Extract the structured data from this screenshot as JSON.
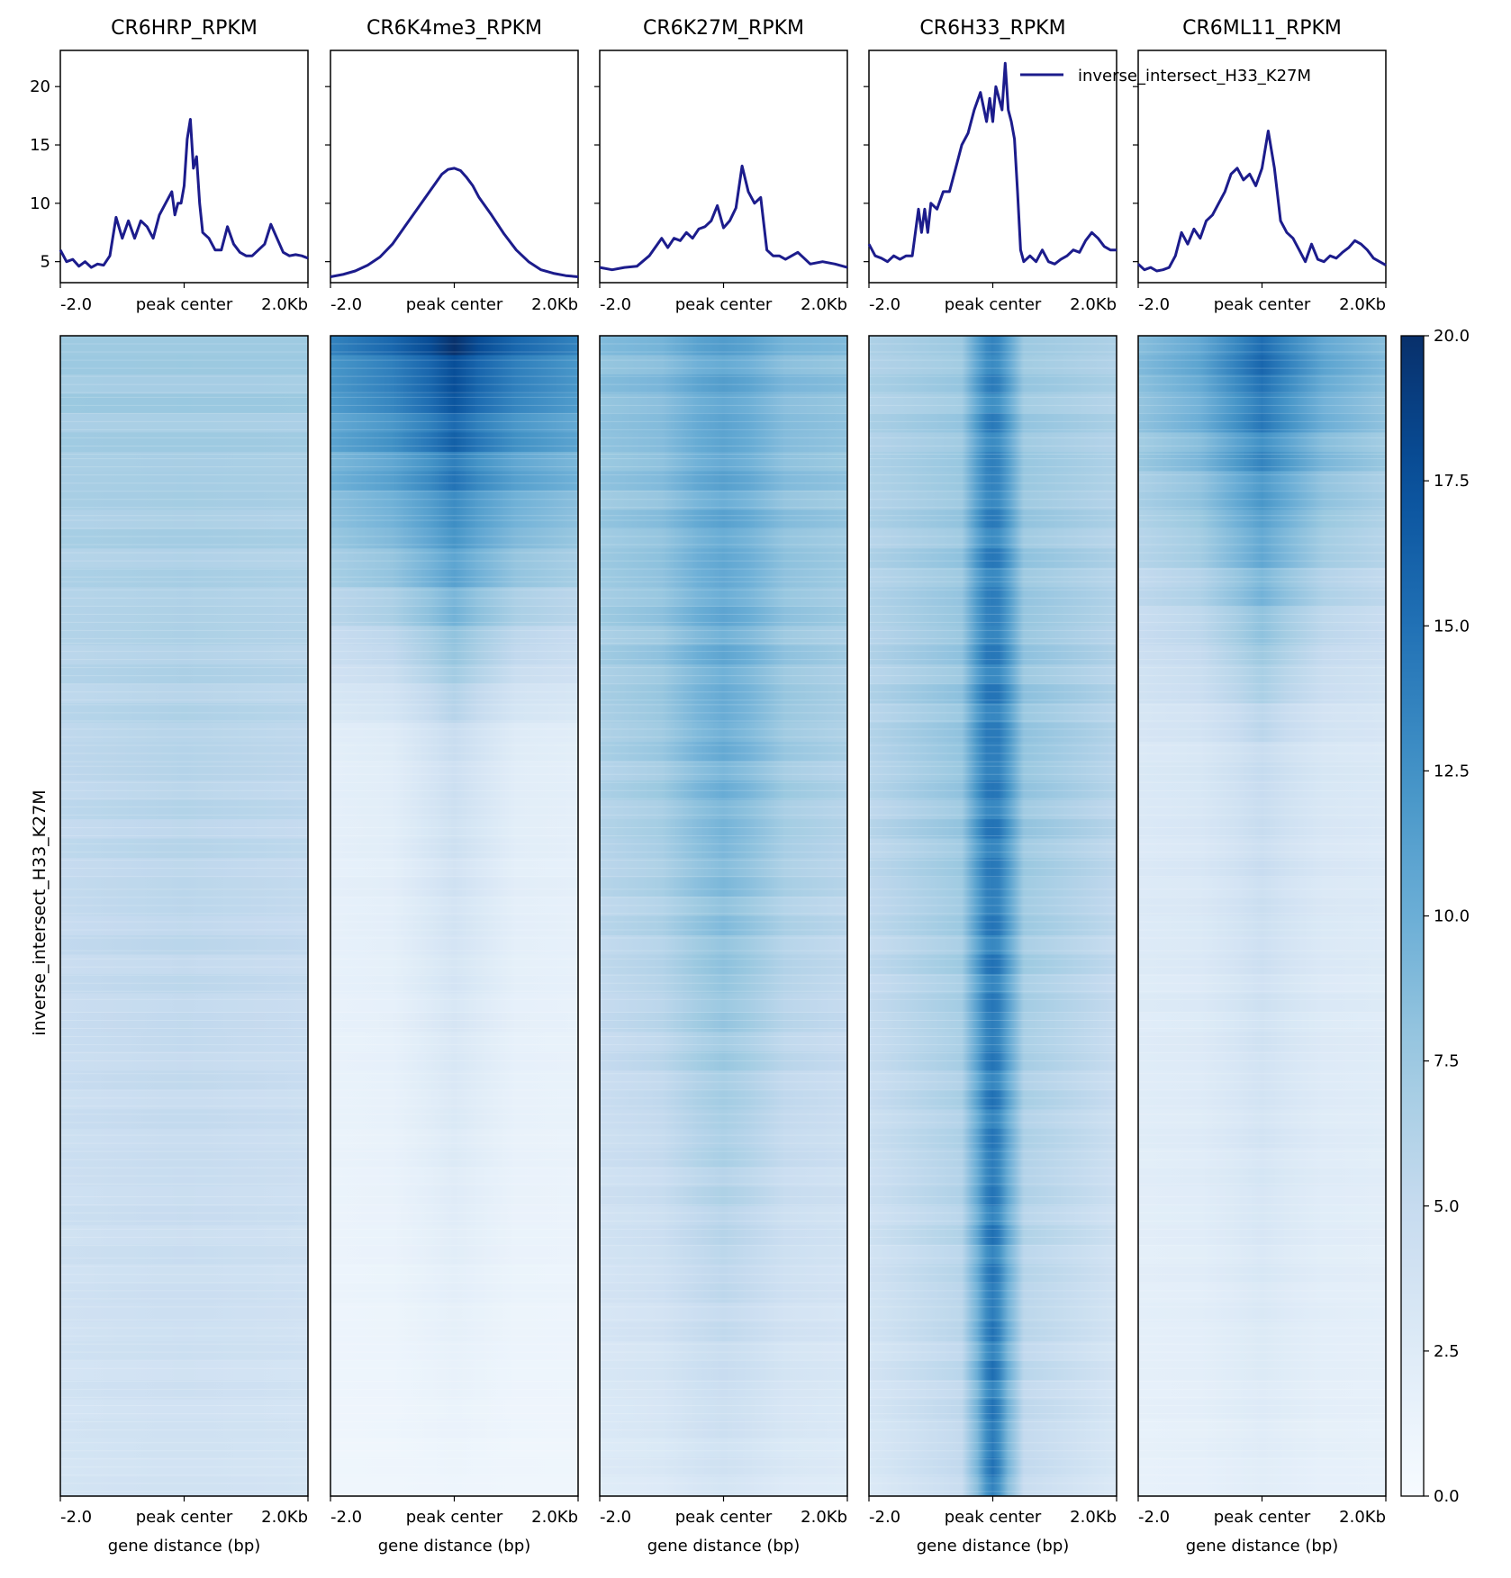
{
  "chart_data": {
    "type": "heatmap",
    "row_label": "inverse_intersect_H33_K27M",
    "x_ticks": [
      "-2.0",
      "peak center",
      "2.0Kb"
    ],
    "xlabel": "gene distance (bp)",
    "profile_ylim": [
      3.2,
      23.1
    ],
    "profile_yticks": [
      5,
      10,
      15,
      20
    ],
    "colorbar": {
      "min": 0,
      "max": 20,
      "ticks": [
        "0.0",
        "2.5",
        "5.0",
        "7.5",
        "10.0",
        "12.5",
        "15.0",
        "17.5",
        "20.0"
      ],
      "colormap": "Blues"
    },
    "legend": {
      "label": "inverse_intersect_H33_K27M",
      "color": "#1c1c8c",
      "placement": "top-right of profile 4"
    },
    "samples": [
      {
        "title": "CR6HRP_RPKM",
        "profile_x": [
          -2000,
          -1900,
          -1800,
          -1700,
          -1600,
          -1500,
          -1400,
          -1300,
          -1200,
          -1100,
          -1000,
          -900,
          -800,
          -700,
          -600,
          -500,
          -400,
          -300,
          -200,
          -150,
          -100,
          -50,
          0,
          50,
          100,
          150,
          200,
          250,
          300,
          400,
          500,
          600,
          700,
          800,
          900,
          1000,
          1100,
          1200,
          1300,
          1400,
          1500,
          1600,
          1700,
          1800,
          1900,
          2000
        ],
        "profile_y": [
          6,
          5,
          5.2,
          4.6,
          5,
          4.5,
          4.8,
          4.7,
          5.5,
          8.8,
          7,
          8.5,
          7,
          8.5,
          8,
          7,
          9,
          10,
          11,
          9,
          10,
          10,
          11.5,
          15.5,
          17.2,
          13,
          14,
          10,
          7.5,
          7,
          6,
          6,
          8,
          6.5,
          5.8,
          5.5,
          5.5,
          6,
          6.5,
          8.2,
          7,
          5.8,
          5.5,
          5.6,
          5.5,
          5.3
        ],
        "heat_profile": [
          {
            "dx": -2000,
            "top": 7.5,
            "mid": 5.5,
            "bot": 3.5
          },
          {
            "dx": -1000,
            "top": 7.5,
            "mid": 5.8,
            "bot": 3.7
          },
          {
            "dx": -300,
            "top": 7.5,
            "mid": 6.0,
            "bot": 3.8
          },
          {
            "dx": 0,
            "top": 7.5,
            "mid": 6.1,
            "bot": 3.8
          },
          {
            "dx": 300,
            "top": 7.5,
            "mid": 6.0,
            "bot": 3.8
          },
          {
            "dx": 1000,
            "top": 7.5,
            "mid": 5.8,
            "bot": 3.7
          },
          {
            "dx": 2000,
            "top": 7.5,
            "mid": 5.5,
            "bot": 3.5
          }
        ]
      },
      {
        "title": "CR6K4me3_RPKM",
        "profile_x": [
          -2000,
          -1800,
          -1600,
          -1400,
          -1200,
          -1000,
          -800,
          -600,
          -400,
          -200,
          -100,
          0,
          100,
          200,
          300,
          400,
          600,
          800,
          1000,
          1200,
          1400,
          1600,
          1800,
          2000
        ],
        "profile_y": [
          3.7,
          3.9,
          4.2,
          4.7,
          5.4,
          6.5,
          8,
          9.5,
          11,
          12.5,
          12.9,
          13,
          12.8,
          12.2,
          11.5,
          10.5,
          9,
          7.4,
          6,
          5,
          4.3,
          4,
          3.8,
          3.7
        ],
        "heat_profile": [
          {
            "dx": -2000,
            "top": 13,
            "mid": 2.0,
            "bot": 0.8
          },
          {
            "dx": -1000,
            "top": 15,
            "mid": 2.3,
            "bot": 0.8
          },
          {
            "dx": -400,
            "top": 17,
            "mid": 3.6,
            "bot": 0.9
          },
          {
            "dx": 0,
            "top": 19,
            "mid": 4.5,
            "bot": 1.0
          },
          {
            "dx": 400,
            "top": 17,
            "mid": 3.6,
            "bot": 0.9
          },
          {
            "dx": 1000,
            "top": 15,
            "mid": 2.3,
            "bot": 0.8
          },
          {
            "dx": 2000,
            "top": 13,
            "mid": 2.0,
            "bot": 0.8
          }
        ]
      },
      {
        "title": "CR6K27M_RPKM",
        "profile_x": [
          -2000,
          -1800,
          -1600,
          -1400,
          -1200,
          -1000,
          -900,
          -800,
          -700,
          -600,
          -500,
          -400,
          -300,
          -200,
          -100,
          0,
          100,
          200,
          300,
          400,
          500,
          600,
          700,
          800,
          900,
          1000,
          1200,
          1400,
          1600,
          1800,
          2000
        ],
        "profile_y": [
          4.5,
          4.3,
          4.5,
          4.6,
          5.5,
          7,
          6.2,
          7,
          6.8,
          7.5,
          7,
          7.8,
          8,
          8.5,
          9.8,
          7.9,
          8.5,
          9.6,
          13.2,
          11,
          10,
          10.5,
          6,
          5.5,
          5.5,
          5.2,
          5.8,
          4.8,
          5,
          4.8,
          4.5
        ],
        "heat_profile": [
          {
            "dx": -2000,
            "top": 8.5,
            "mid": 6.5,
            "bot": 2.5
          },
          {
            "dx": -1000,
            "top": 9.0,
            "mid": 7.5,
            "bot": 2.8
          },
          {
            "dx": -400,
            "top": 10.5,
            "mid": 9.2,
            "bot": 3.4
          },
          {
            "dx": 0,
            "top": 11.0,
            "mid": 10.0,
            "bot": 3.7
          },
          {
            "dx": 400,
            "top": 10.5,
            "mid": 9.2,
            "bot": 3.4
          },
          {
            "dx": 1000,
            "top": 9.0,
            "mid": 7.5,
            "bot": 2.8
          },
          {
            "dx": 2000,
            "top": 8.5,
            "mid": 6.5,
            "bot": 2.5
          }
        ]
      },
      {
        "title": "CR6H33_RPKM",
        "profile_x": [
          -2000,
          -1900,
          -1800,
          -1700,
          -1600,
          -1500,
          -1400,
          -1300,
          -1200,
          -1150,
          -1100,
          -1050,
          -1000,
          -900,
          -800,
          -700,
          -600,
          -500,
          -400,
          -300,
          -200,
          -100,
          -50,
          0,
          50,
          100,
          150,
          200,
          250,
          300,
          350,
          400,
          450,
          500,
          600,
          700,
          800,
          900,
          1000,
          1100,
          1200,
          1300,
          1400,
          1500,
          1600,
          1700,
          1800,
          1900,
          2000
        ],
        "profile_y": [
          6.5,
          5.5,
          5.3,
          5,
          5.5,
          5.2,
          5.5,
          5.5,
          9.5,
          7.5,
          9.5,
          7.5,
          10,
          9.5,
          11,
          11,
          13,
          15,
          16,
          18,
          19.5,
          17,
          19,
          17,
          20,
          19,
          18,
          22,
          18,
          17,
          15.5,
          11,
          6,
          5,
          5.5,
          5,
          6,
          5,
          4.8,
          5.2,
          5.5,
          6,
          5.8,
          6.8,
          7.5,
          7,
          6.3,
          6,
          6
        ],
        "heat_profile": [
          {
            "dx": -2000,
            "top": 6.5,
            "mid": 6.0,
            "bot": 3.0
          },
          {
            "dx": -500,
            "top": 7.5,
            "mid": 8.0,
            "bot": 5.0
          },
          {
            "dx": -250,
            "top": 11.0,
            "mid": 12.0,
            "bot": 9.0
          },
          {
            "dx": -100,
            "top": 13.0,
            "mid": 14.0,
            "bot": 13.0
          },
          {
            "dx": 0,
            "top": 13.5,
            "mid": 14.0,
            "bot": 14.5
          },
          {
            "dx": 100,
            "top": 13.0,
            "mid": 14.0,
            "bot": 13.0
          },
          {
            "dx": 250,
            "top": 11.0,
            "mid": 12.0,
            "bot": 9.0
          },
          {
            "dx": 500,
            "top": 7.5,
            "mid": 8.0,
            "bot": 5.0
          },
          {
            "dx": 2000,
            "top": 6.5,
            "mid": 6.0,
            "bot": 3.0
          }
        ]
      },
      {
        "title": "CR6ML11_RPKM",
        "profile_x": [
          -2000,
          -1900,
          -1800,
          -1700,
          -1600,
          -1500,
          -1400,
          -1300,
          -1200,
          -1100,
          -1000,
          -900,
          -800,
          -700,
          -600,
          -500,
          -400,
          -300,
          -200,
          -100,
          0,
          100,
          200,
          300,
          400,
          500,
          600,
          700,
          800,
          900,
          1000,
          1100,
          1200,
          1300,
          1400,
          1500,
          1600,
          1700,
          1800,
          1900,
          2000
        ],
        "profile_y": [
          4.8,
          4.3,
          4.5,
          4.2,
          4.3,
          4.5,
          5.5,
          7.5,
          6.5,
          7.8,
          7,
          8.5,
          9,
          10,
          11,
          12.5,
          13,
          12,
          12.5,
          11.5,
          13,
          16.2,
          13,
          8.5,
          7.5,
          7,
          6,
          5,
          6.5,
          5.2,
          5,
          5.5,
          5.3,
          5.8,
          6.2,
          6.8,
          6.5,
          6,
          5.3,
          5,
          4.7
        ],
        "heat_profile": [
          {
            "dx": -2000,
            "top": 9.0,
            "mid": 3.0,
            "bot": 1.6
          },
          {
            "dx": -1000,
            "top": 11.0,
            "mid": 3.3,
            "bot": 1.7
          },
          {
            "dx": -400,
            "top": 14.0,
            "mid": 4.2,
            "bot": 2.0
          },
          {
            "dx": 0,
            "top": 16.0,
            "mid": 5.0,
            "bot": 2.2
          },
          {
            "dx": 400,
            "top": 14.0,
            "mid": 4.2,
            "bot": 2.0
          },
          {
            "dx": 1000,
            "top": 11.0,
            "mid": 3.3,
            "bot": 1.7
          },
          {
            "dx": 2000,
            "top": 9.0,
            "mid": 3.0,
            "bot": 1.6
          }
        ]
      }
    ]
  }
}
